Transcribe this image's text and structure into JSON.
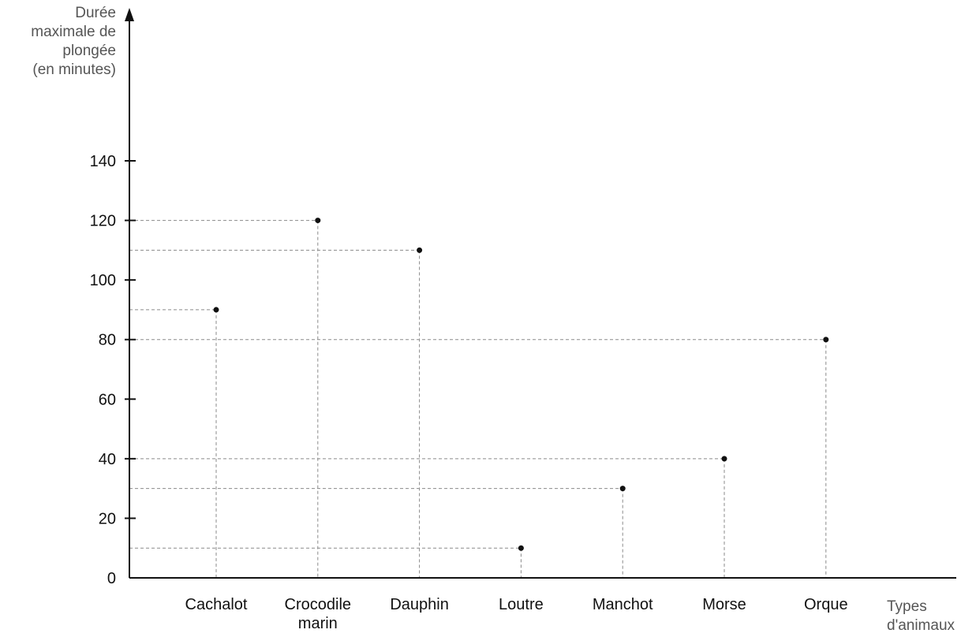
{
  "chart_data": {
    "type": "scatter",
    "categories": [
      "Cachalot",
      "Crocodile marin",
      "Dauphin",
      "Loutre",
      "Manchot",
      "Morse",
      "Orque"
    ],
    "category_label_lines": [
      [
        "Cachalot"
      ],
      [
        "Crocodile",
        "marin"
      ],
      [
        "Dauphin"
      ],
      [
        "Loutre"
      ],
      [
        "Manchot"
      ],
      [
        "Morse"
      ],
      [
        "Orque"
      ]
    ],
    "series": [
      {
        "values": [
          90,
          120,
          110,
          10,
          30,
          40,
          80
        ]
      }
    ],
    "y_ticks": [
      "0",
      "20",
      "40",
      "60",
      "80",
      "100",
      "120",
      "140"
    ],
    "ylim": [
      0,
      160
    ],
    "ylabel_lines": [
      "Durée",
      "maximale de",
      "plongée",
      "(en minutes)"
    ],
    "xlabel_lines": [
      "Types",
      "d'animaux"
    ],
    "guide_lines": "dashed",
    "grid": false,
    "colors": {
      "axis": "#111111",
      "point": "#111111",
      "guide": "#8a8a8a",
      "axis_title": "#555555"
    }
  }
}
